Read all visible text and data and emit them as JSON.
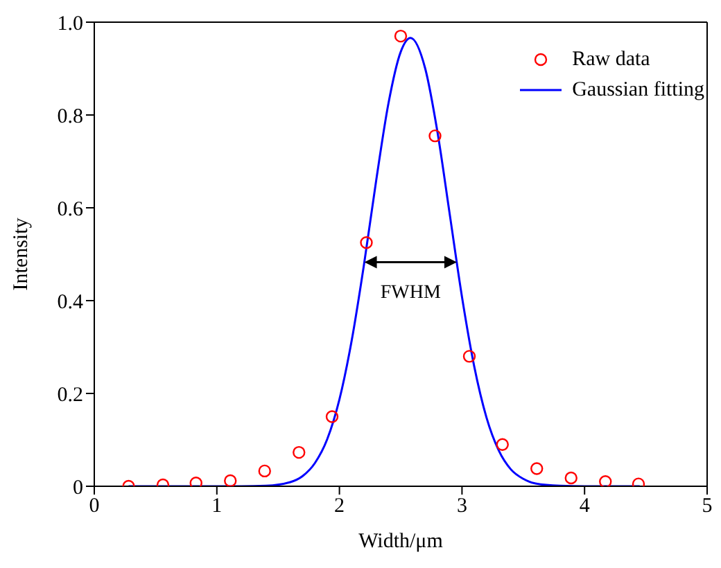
{
  "chart_data": {
    "type": "scatter",
    "xlabel": "Width/μm",
    "ylabel": "Intensity",
    "xlim": [
      0,
      5
    ],
    "xticks": [
      0,
      1,
      2,
      3,
      4,
      5
    ],
    "ylim": [
      0,
      1
    ],
    "yticks": [
      0,
      0.2,
      0.4,
      0.6,
      0.8,
      {
        "value": 1,
        "label": "1.0"
      }
    ],
    "grid": false,
    "legend": "top right",
    "annotations": [
      "FWHM"
    ],
    "series": [
      {
        "name": "Raw data",
        "marker": "circle",
        "color": "#ff0000",
        "x": [
          0.28,
          0.56,
          0.83,
          1.11,
          1.39,
          1.67,
          1.94,
          2.22,
          2.5,
          2.78,
          3.06,
          3.33,
          3.61,
          3.89,
          4.17,
          4.44
        ],
        "values": [
          0,
          0.003,
          0.007,
          0.012,
          0.033,
          0.073,
          0.15,
          0.525,
          0.97,
          0.755,
          0.28,
          0.09,
          0.038,
          0.018,
          0.01,
          0.005
        ]
      },
      {
        "name": "Gaussian fitting",
        "type": "line",
        "marker": "none",
        "line_style": "solid",
        "color": "#0000ff",
        "x": [
          0.28,
          1.2,
          1.4,
          1.6,
          1.7,
          1.8,
          1.9,
          2.0,
          2.1,
          2.2,
          2.3,
          2.4,
          2.5,
          2.58,
          2.7,
          2.8,
          2.9,
          3.0,
          3.1,
          3.2,
          3.3,
          3.4,
          3.5,
          3.6,
          3.8,
          4.0,
          4.45
        ],
        "values": [
          0,
          0,
          0.001,
          0.009,
          0.022,
          0.05,
          0.101,
          0.187,
          0.314,
          0.477,
          0.659,
          0.825,
          0.936,
          0.966,
          0.9,
          0.763,
          0.586,
          0.408,
          0.258,
          0.148,
          0.077,
          0.036,
          0.016,
          0.006,
          0.001,
          0,
          0
        ]
      }
    ]
  }
}
